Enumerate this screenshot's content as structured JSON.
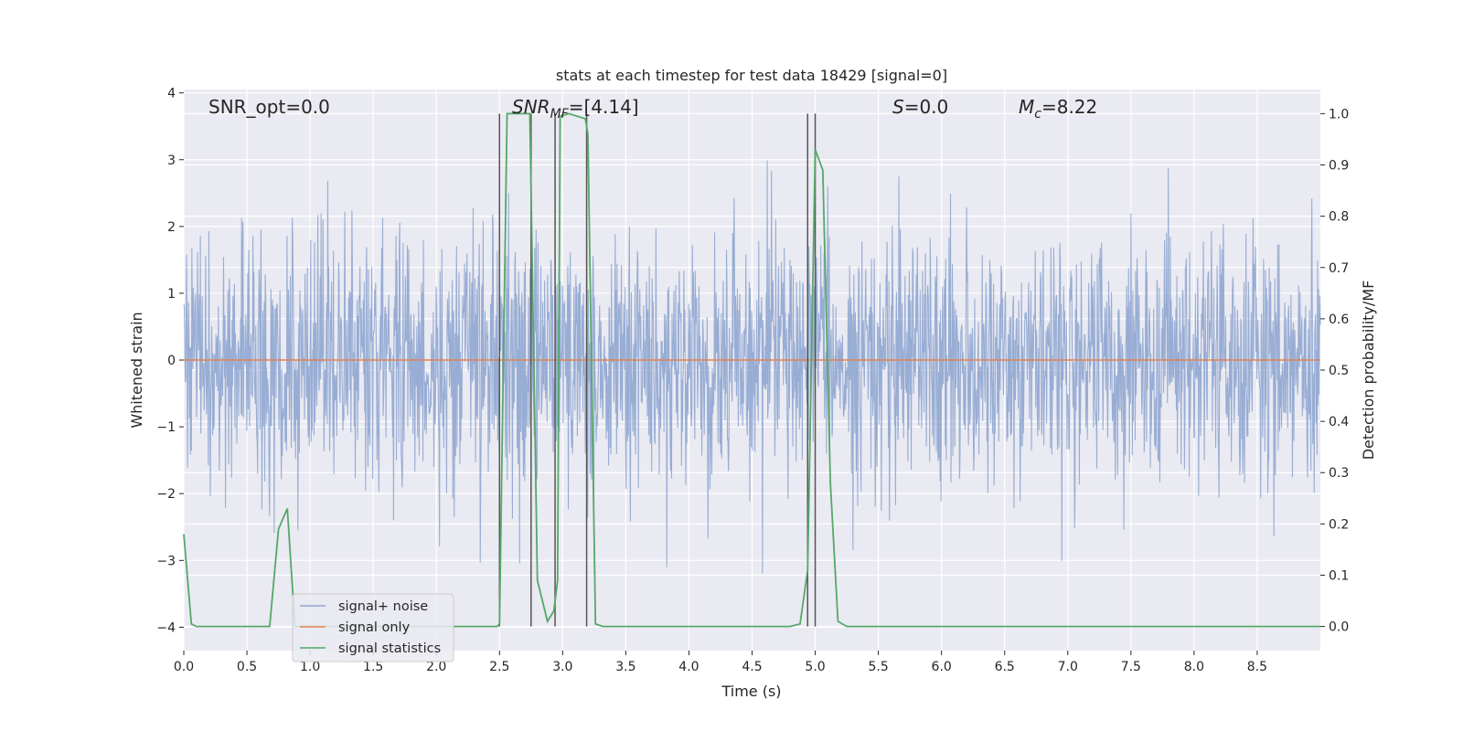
{
  "chart_data": {
    "type": "line",
    "title": "stats at each timestep for test data 18429 [signal=0]",
    "xlabel": "Time (s)",
    "ylabel_left": "Whitened strain",
    "ylabel_right": "Detection probability/MF",
    "xlim": [
      0.0,
      9.0
    ],
    "ylim_left": [
      -4.35,
      4.05
    ],
    "ylim_right": [
      -0.047,
      1.047
    ],
    "x_ticks": [
      "0.0",
      "0.5",
      "1.0",
      "1.5",
      "2.0",
      "2.5",
      "3.0",
      "3.5",
      "4.0",
      "4.5",
      "5.0",
      "5.5",
      "6.0",
      "6.5",
      "7.0",
      "7.5",
      "8.0",
      "8.5"
    ],
    "y_ticks_left": [
      "4",
      "3",
      "2",
      "1",
      "0",
      "−1",
      "−2",
      "−3",
      "−4"
    ],
    "y_ticks_right": [
      "1.0",
      "0.9",
      "0.8",
      "0.7",
      "0.6",
      "0.5",
      "0.4",
      "0.3",
      "0.2",
      "0.1",
      "0.0"
    ],
    "grid": true,
    "legend_position": "lower-left",
    "annotations": {
      "snr_opt": "SNR_opt=0.0",
      "snr_mf_main": "SNR",
      "snr_mf_sub": "MF",
      "snr_mf_value": "=[4.14]",
      "s_main": "S",
      "s_value": "=0.0",
      "mc_main": "M",
      "mc_sub": "c",
      "mc_value": "=8.22"
    },
    "series": [
      {
        "name": "signal+ noise",
        "color": "#8fa6d0",
        "description_values": "whitened noise, roughly within [-3.6, 3.6]",
        "seed": 18429,
        "sigma": 1.0
      },
      {
        "name": "signal only",
        "color": "#dd8452",
        "x": [
          0.0,
          9.0
        ],
        "y": [
          0.0,
          0.0
        ]
      },
      {
        "name": "signal statistics",
        "color": "#55a868",
        "axis": "right",
        "x": [
          0.0,
          0.06,
          0.1,
          0.68,
          0.75,
          0.82,
          0.88,
          2.48,
          2.5,
          2.56,
          2.74,
          2.8,
          2.88,
          2.93,
          2.96,
          2.98,
          3.05,
          3.18,
          3.2,
          3.26,
          3.32,
          4.8,
          4.88,
          4.94,
          5.0,
          5.06,
          5.12,
          5.18,
          5.25,
          9.0
        ],
        "y": [
          0.18,
          0.005,
          0.0,
          0.0,
          0.19,
          0.23,
          0.0,
          0.0,
          0.005,
          1.0,
          1.0,
          0.09,
          0.01,
          0.03,
          0.09,
          0.995,
          1.0,
          0.99,
          0.96,
          0.005,
          0.0,
          0.0,
          0.005,
          0.11,
          0.93,
          0.89,
          0.28,
          0.01,
          0.0,
          0.0
        ]
      }
    ],
    "vertical_markers": {
      "color": "#555555",
      "x": [
        2.5,
        2.75,
        2.94,
        3.19,
        4.94,
        5.0
      ]
    }
  }
}
